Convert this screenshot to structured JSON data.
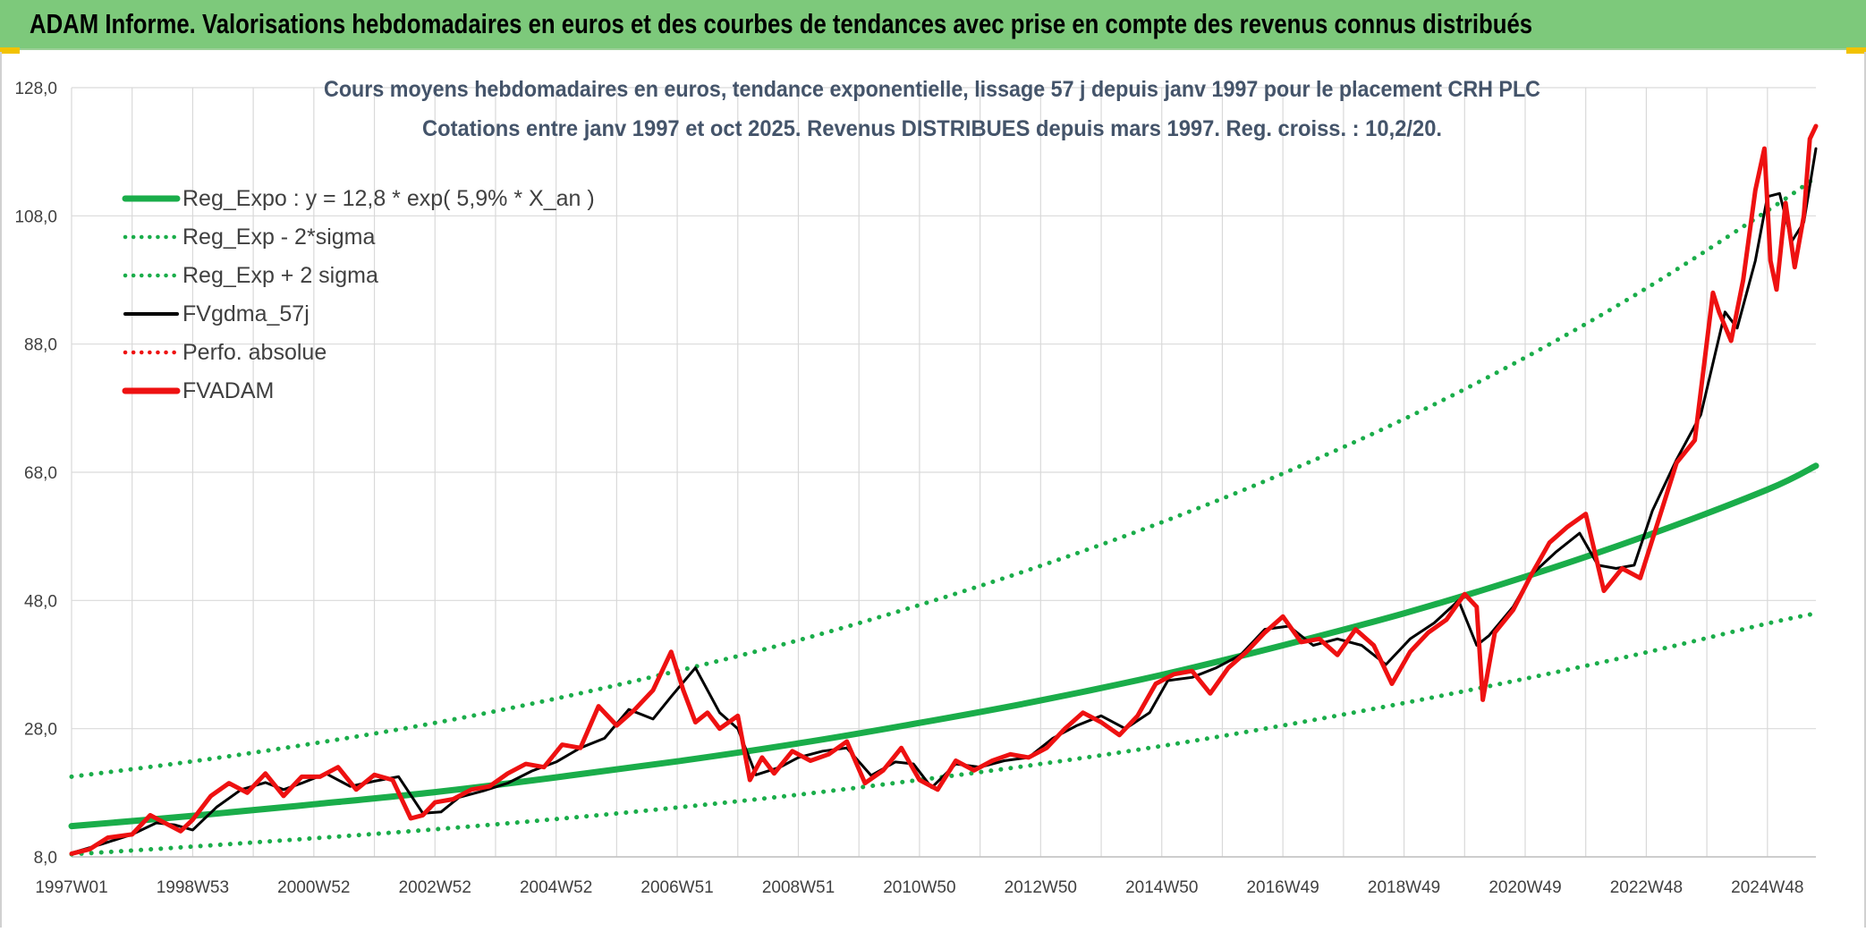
{
  "header": {
    "title": "ADAM Informe. Valorisations hebdomadaires en euros et des courbes de tendances avec prise en compte des revenus connus distribués"
  },
  "colors": {
    "banner": "#7dc97b",
    "regression": "#1aad4a",
    "moving_average": "#000000",
    "performance": "#ee1111",
    "fvadam": "#ee1111",
    "grid": "#d9d9d9"
  },
  "chart_data": {
    "type": "line",
    "title": "Cours moyens hebdomadaires en euros, tendance exponentielle, lissage 57 j depuis janv 1997 pour le placement CRH PLC",
    "subtitle": "Cotations entre janv 1997 et oct 2025. Revenus DISTRIBUES depuis mars 1997. Reg. croiss. : 10,2/20.",
    "xlabel": "",
    "ylabel": "",
    "ylim": [
      8,
      128
    ],
    "xlim": [
      1997.0,
      2025.8
    ],
    "yticks": [
      "8,0",
      "28,0",
      "48,0",
      "68,0",
      "88,0",
      "108,0",
      "128,0"
    ],
    "xticks": [
      {
        "label": "1997W01",
        "x": 1997.0
      },
      {
        "label": "1998W53",
        "x": 1999.0
      },
      {
        "label": "2000W52",
        "x": 2001.0
      },
      {
        "label": "2002W52",
        "x": 2003.0
      },
      {
        "label": "2004W52",
        "x": 2005.0
      },
      {
        "label": "2006W51",
        "x": 2007.0
      },
      {
        "label": "2008W51",
        "x": 2009.0
      },
      {
        "label": "2010W50",
        "x": 2011.0
      },
      {
        "label": "2012W50",
        "x": 2013.0
      },
      {
        "label": "2014W50",
        "x": 2015.0
      },
      {
        "label": "2016W49",
        "x": 2017.0
      },
      {
        "label": "2018W49",
        "x": 2019.0
      },
      {
        "label": "2020W49",
        "x": 2021.0
      },
      {
        "label": "2022W48",
        "x": 2023.0
      },
      {
        "label": "2024W48",
        "x": 2025.0
      }
    ],
    "grid": true,
    "legend_position": "top-left",
    "legend": [
      {
        "label": "Reg_Expo : y = 12,8 * exp( 5,9% *  X_an )",
        "style": "solid-thick",
        "color": "#1aad4a"
      },
      {
        "label": "Reg_Exp - 2*sigma",
        "style": "dotted",
        "color": "#1aad4a"
      },
      {
        "label": "Reg_Exp + 2 sigma",
        "style": "dotted",
        "color": "#1aad4a"
      },
      {
        "label": "FVgdma_57j",
        "style": "solid",
        "color": "#000000"
      },
      {
        "label": "Perfo. absolue",
        "style": "dotted",
        "color": "#ee1111"
      },
      {
        "label": "FVADAM",
        "style": "solid-thick",
        "color": "#ee1111"
      }
    ],
    "series": [
      {
        "name": "Reg_Expo : y = 12,8 * exp( 5,9% *  X_an )",
        "x": [
          1997,
          1999,
          2001,
          2003,
          2005,
          2007,
          2009,
          2011,
          2013,
          2015,
          2017,
          2019,
          2021,
          2023,
          2025,
          2025.8
        ],
        "values": [
          12.8,
          14.4,
          16.2,
          18.1,
          20.4,
          22.9,
          25.7,
          28.9,
          32.4,
          36.4,
          41.0,
          46.0,
          51.7,
          58.1,
          65.3,
          69.0
        ]
      },
      {
        "name": "Reg_Exp - 2*sigma",
        "x": [
          1997,
          1999,
          2001,
          2003,
          2005,
          2007,
          2009,
          2011,
          2013,
          2015,
          2017,
          2019,
          2021,
          2023,
          2025,
          2025.8
        ],
        "values": [
          8.4,
          9.6,
          10.9,
          12.3,
          13.9,
          15.7,
          17.7,
          20.0,
          22.5,
          25.3,
          28.5,
          32.0,
          35.8,
          39.9,
          44.4,
          46.0
        ]
      },
      {
        "name": "Reg_Exp + 2 sigma",
        "x": [
          1997,
          1999,
          2001,
          2003,
          2005,
          2007,
          2009,
          2011,
          2013,
          2015,
          2017,
          2019,
          2021,
          2023,
          2025,
          2025.8
        ],
        "values": [
          20.5,
          22.9,
          25.7,
          28.9,
          32.7,
          37.0,
          41.8,
          47.3,
          53.4,
          60.2,
          67.8,
          76.3,
          85.9,
          96.7,
          108.8,
          114.0
        ]
      },
      {
        "name": "FVgdma_57j",
        "x": [
          1997.0,
          1997.5,
          1998.0,
          1998.4,
          1998.7,
          1999.0,
          1999.4,
          1999.8,
          2000.2,
          2000.5,
          2000.8,
          2001.2,
          2001.6,
          2002.0,
          2002.4,
          2002.8,
          2003.1,
          2003.4,
          2003.8,
          2004.2,
          2004.6,
          2005.0,
          2005.4,
          2005.8,
          2006.2,
          2006.6,
          2006.9,
          2007.3,
          2007.7,
          2008.0,
          2008.3,
          2008.7,
          2009.0,
          2009.4,
          2009.8,
          2010.2,
          2010.6,
          2010.9,
          2011.2,
          2011.6,
          2012.0,
          2012.4,
          2012.8,
          2013.2,
          2013.6,
          2014.0,
          2014.4,
          2014.8,
          2015.1,
          2015.5,
          2015.9,
          2016.3,
          2016.7,
          2017.1,
          2017.5,
          2017.9,
          2018.3,
          2018.7,
          2019.1,
          2019.5,
          2019.9,
          2020.2,
          2020.4,
          2020.8,
          2021.1,
          2021.5,
          2021.9,
          2022.2,
          2022.5,
          2022.8,
          2023.1,
          2023.5,
          2023.9,
          2024.3,
          2024.5,
          2024.8,
          2025.0,
          2025.2,
          2025.4,
          2025.6,
          2025.8
        ],
        "values": [
          8.6,
          10.0,
          11.5,
          13.3,
          13.0,
          12.2,
          15.8,
          18.5,
          19.6,
          18.5,
          19.5,
          21.0,
          19.0,
          19.8,
          20.5,
          14.8,
          15.0,
          17.3,
          18.3,
          19.5,
          21.4,
          22.8,
          25.0,
          26.5,
          31.0,
          29.5,
          33.0,
          37.5,
          30.5,
          28.0,
          20.8,
          22.0,
          23.5,
          24.5,
          25.0,
          20.7,
          22.8,
          22.5,
          18.8,
          22.5,
          22.0,
          23.0,
          23.5,
          26.5,
          28.5,
          30.0,
          28.0,
          30.5,
          35.5,
          36.0,
          37.5,
          39.5,
          43.5,
          44.0,
          41.0,
          42.0,
          41.0,
          38.0,
          42.0,
          44.5,
          48.0,
          41.0,
          42.5,
          47.0,
          52.0,
          55.5,
          58.5,
          53.5,
          53.0,
          53.5,
          62.0,
          70.0,
          77.0,
          93.0,
          90.5,
          101.0,
          111.0,
          111.5,
          104.0,
          107.0,
          118.5
        ]
      },
      {
        "name": "FVADAM",
        "x": [
          1997.0,
          1997.3,
          1997.6,
          1998.0,
          1998.3,
          1998.6,
          1998.8,
          1999.0,
          1999.3,
          1999.6,
          1999.9,
          2000.2,
          2000.5,
          2000.8,
          2001.1,
          2001.4,
          2001.7,
          2002.0,
          2002.3,
          2002.6,
          2002.8,
          2003.0,
          2003.3,
          2003.6,
          2003.9,
          2004.2,
          2004.5,
          2004.8,
          2005.1,
          2005.4,
          2005.7,
          2006.0,
          2006.3,
          2006.6,
          2006.9,
          2007.1,
          2007.3,
          2007.5,
          2007.7,
          2008.0,
          2008.2,
          2008.4,
          2008.6,
          2008.9,
          2009.2,
          2009.5,
          2009.8,
          2010.1,
          2010.4,
          2010.7,
          2011.0,
          2011.3,
          2011.6,
          2011.9,
          2012.2,
          2012.5,
          2012.8,
          2013.1,
          2013.4,
          2013.7,
          2014.0,
          2014.3,
          2014.6,
          2014.9,
          2015.2,
          2015.5,
          2015.8,
          2016.1,
          2016.4,
          2016.7,
          2017.0,
          2017.3,
          2017.6,
          2017.9,
          2018.2,
          2018.5,
          2018.8,
          2019.1,
          2019.4,
          2019.7,
          2020.0,
          2020.2,
          2020.3,
          2020.5,
          2020.8,
          2021.1,
          2021.4,
          2021.7,
          2022.0,
          2022.3,
          2022.6,
          2022.9,
          2023.2,
          2023.5,
          2023.8,
          2024.1,
          2024.2,
          2024.4,
          2024.6,
          2024.8,
          2024.95,
          2025.05,
          2025.15,
          2025.3,
          2025.45,
          2025.6,
          2025.7,
          2025.8
        ],
        "values": [
          8.5,
          9.2,
          11.0,
          11.5,
          14.5,
          13.0,
          12.0,
          13.8,
          17.5,
          19.5,
          18.0,
          21.0,
          17.5,
          20.5,
          20.5,
          22.0,
          18.5,
          20.8,
          20.0,
          14.0,
          14.5,
          16.5,
          17.0,
          18.5,
          19.0,
          21.0,
          22.5,
          22.0,
          25.5,
          25.0,
          31.5,
          28.5,
          31.0,
          34.0,
          40.0,
          34.0,
          29.0,
          30.5,
          28.0,
          30.0,
          20.0,
          23.5,
          21.0,
          24.5,
          23.0,
          24.0,
          26.0,
          19.5,
          21.5,
          25.0,
          20.0,
          18.5,
          23.0,
          21.5,
          23.0,
          24.0,
          23.5,
          25.0,
          28.0,
          30.5,
          29.0,
          27.0,
          30.0,
          35.0,
          36.5,
          37.0,
          33.5,
          37.5,
          40.0,
          43.0,
          45.5,
          41.5,
          42.0,
          39.5,
          43.5,
          41.0,
          35.0,
          40.0,
          43.0,
          45.0,
          49.0,
          47.0,
          32.5,
          43.0,
          46.5,
          52.0,
          57.0,
          59.5,
          61.5,
          49.5,
          53.0,
          51.5,
          60.5,
          69.5,
          73.0,
          96.0,
          93.0,
          88.5,
          98.0,
          112.0,
          118.5,
          101.0,
          96.5,
          110.0,
          100.0,
          108.0,
          120.0,
          122.0
        ]
      }
    ]
  }
}
